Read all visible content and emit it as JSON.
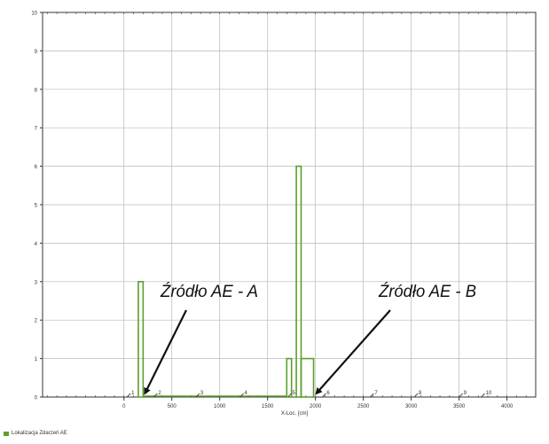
{
  "chart_data": {
    "type": "bar",
    "title": "",
    "xlabel": "X-Loc. [cm]",
    "ylabel": "",
    "xlim": [
      -850,
      4300
    ],
    "ylim": [
      0,
      10
    ],
    "x_ticks": [
      "0",
      "500",
      "1000",
      "1500",
      "2000",
      "2500",
      "3000",
      "3500",
      "4000"
    ],
    "y_ticks": [
      "0",
      "1",
      "2",
      "3",
      "4",
      "5",
      "6",
      "7",
      "8",
      "9",
      "10"
    ],
    "grid": true,
    "series": [
      {
        "name": "Lokalizacja Zdarzeń AE",
        "color": "#5aa02c",
        "bins": [
          {
            "x0": 150,
            "x1": 200,
            "value": 3
          },
          {
            "x0": 200,
            "x1": 1700,
            "value": 0
          },
          {
            "x0": 1700,
            "x1": 1750,
            "value": 1
          },
          {
            "x0": 1800,
            "x1": 1850,
            "value": 6
          },
          {
            "x0": 1850,
            "x1": 1980,
            "value": 1
          }
        ]
      }
    ],
    "sensors": [
      {
        "label": "1",
        "x": 50
      },
      {
        "label": "2",
        "x": 330
      },
      {
        "label": "3",
        "x": 770
      },
      {
        "label": "4",
        "x": 1230
      },
      {
        "label": "5",
        "x": 1730
      },
      {
        "label": "6",
        "x": 2090
      },
      {
        "label": "7",
        "x": 2590
      },
      {
        "label": "8",
        "x": 3050
      },
      {
        "label": "9",
        "x": 3520
      },
      {
        "label": "10",
        "x": 3750
      }
    ],
    "annotations": [
      {
        "text": "Źródło AE - A",
        "target_x": 200,
        "target_y": 0
      },
      {
        "text": "Źródło AE - B",
        "target_x": 1990,
        "target_y": 0
      }
    ]
  },
  "legend": {
    "label": "Lokalizacja Zdarzeń AE"
  },
  "colors": {
    "series": "#5aa02c",
    "grid": "#b8b8b8",
    "axis": "#333333",
    "annotation": "#111111"
  }
}
